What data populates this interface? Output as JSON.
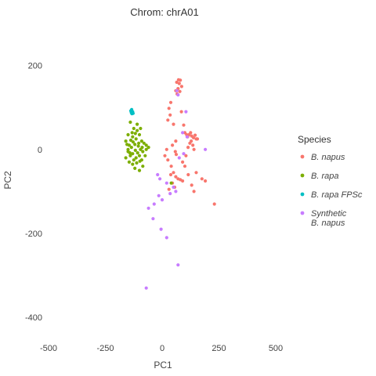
{
  "chart_data": {
    "type": "scatter",
    "title": "Chrom: chrA01",
    "xlabel": "PC1",
    "ylabel": "PC2",
    "xlim": [
      -500,
      500
    ],
    "ylim": [
      -450,
      300
    ],
    "xticks": [
      "-500",
      "-250",
      "0",
      "250",
      "500"
    ],
    "yticks": [
      "200",
      "0",
      "-200",
      "-400"
    ],
    "xtick_values": [
      -500,
      -250,
      0,
      250,
      500
    ],
    "ytick_values": [
      200,
      0,
      -200,
      -400
    ],
    "grid": false,
    "legend": {
      "title": "Species",
      "placement": "right"
    },
    "series": [
      {
        "name": "B. napus",
        "color": "#F8766D",
        "points": [
          [
            72,
            166
          ],
          [
            80,
            165
          ],
          [
            64,
            160
          ],
          [
            75,
            157
          ],
          [
            86,
            150
          ],
          [
            70,
            145
          ],
          [
            60,
            140
          ],
          [
            78,
            138
          ],
          [
            66,
            132
          ],
          [
            38,
            112
          ],
          [
            30,
            98
          ],
          [
            35,
            82
          ],
          [
            25,
            70
          ],
          [
            50,
            60
          ],
          [
            100,
            40
          ],
          [
            108,
            35
          ],
          [
            112,
            30
          ],
          [
            118,
            35
          ],
          [
            125,
            40
          ],
          [
            130,
            32
          ],
          [
            138,
            28
          ],
          [
            145,
            34
          ],
          [
            150,
            25
          ],
          [
            122,
            15
          ],
          [
            128,
            20
          ],
          [
            135,
            10
          ],
          [
            114,
            5
          ],
          [
            155,
            25
          ],
          [
            140,
            0
          ],
          [
            90,
            -30
          ],
          [
            100,
            -40
          ],
          [
            40,
            -40
          ],
          [
            50,
            -55
          ],
          [
            60,
            -65
          ],
          [
            70,
            -70
          ],
          [
            80,
            -72
          ],
          [
            90,
            -75
          ],
          [
            45,
            -80
          ],
          [
            55,
            -90
          ],
          [
            30,
            -95
          ],
          [
            38,
            -60
          ],
          [
            150,
            -55
          ],
          [
            175,
            -70
          ],
          [
            190,
            -75
          ],
          [
            130,
            -85
          ],
          [
            140,
            -100
          ],
          [
            230,
            -130
          ],
          [
            20,
            0
          ],
          [
            12,
            -15
          ],
          [
            25,
            -25
          ],
          [
            60,
            20
          ],
          [
            85,
            90
          ],
          [
            95,
            58
          ],
          [
            62,
            -12
          ],
          [
            105,
            -15
          ],
          [
            115,
            -60
          ],
          [
            58,
            -5
          ],
          [
            45,
            10
          ]
        ]
      },
      {
        "name": "B. rapa",
        "color": "#7CAE00",
        "points": [
          [
            -140,
            65
          ],
          [
            -125,
            50
          ],
          [
            -110,
            60
          ],
          [
            -150,
            35
          ],
          [
            -130,
            30
          ],
          [
            -115,
            25
          ],
          [
            -100,
            35
          ],
          [
            -90,
            20
          ],
          [
            -80,
            15
          ],
          [
            -70,
            10
          ],
          [
            -160,
            20
          ],
          [
            -145,
            10
          ],
          [
            -135,
            5
          ],
          [
            -120,
            12
          ],
          [
            -105,
            8
          ],
          [
            -95,
            0
          ],
          [
            -85,
            -5
          ],
          [
            -150,
            -5
          ],
          [
            -140,
            -15
          ],
          [
            -130,
            -10
          ],
          [
            -115,
            -20
          ],
          [
            -100,
            -15
          ],
          [
            -160,
            -20
          ],
          [
            -145,
            -30
          ],
          [
            -130,
            -35
          ],
          [
            -120,
            -45
          ],
          [
            -100,
            -50
          ],
          [
            -85,
            -40
          ],
          [
            -150,
            0
          ],
          [
            -138,
            22
          ],
          [
            -128,
            18
          ],
          [
            -118,
            -2
          ],
          [
            -108,
            -8
          ],
          [
            -90,
            -25
          ],
          [
            -75,
            -15
          ],
          [
            -110,
            45
          ],
          [
            -95,
            50
          ],
          [
            -70,
            0
          ],
          [
            -60,
            5
          ],
          [
            -155,
            12
          ],
          [
            -142,
            -8
          ],
          [
            -125,
            -25
          ],
          [
            -112,
            -32
          ],
          [
            -98,
            -28
          ],
          [
            -132,
            40
          ],
          [
            -118,
            38
          ],
          [
            -103,
            15
          ],
          [
            -88,
            5
          ],
          [
            40,
            -80
          ]
        ]
      },
      {
        "name": "B. rapa FPSc",
        "color": "#00BFC4",
        "points": [
          [
            -138,
            92
          ],
          [
            -134,
            95
          ],
          [
            -136,
            88
          ],
          [
            -130,
            90
          ],
          [
            -133,
            85
          ],
          [
            -128,
            86
          ]
        ]
      },
      {
        "name": "Synthetic B. napus",
        "color": "#C77CFF",
        "points": [
          [
            65,
            140
          ],
          [
            70,
            130
          ],
          [
            90,
            40
          ],
          [
            110,
            30
          ],
          [
            190,
            0
          ],
          [
            95,
            -10
          ],
          [
            75,
            -20
          ],
          [
            -20,
            -60
          ],
          [
            -10,
            -70
          ],
          [
            20,
            -80
          ],
          [
            -15,
            -110
          ],
          [
            0,
            -120
          ],
          [
            -35,
            -130
          ],
          [
            -60,
            -140
          ],
          [
            -5,
            -190
          ],
          [
            -40,
            -165
          ],
          [
            20,
            -210
          ],
          [
            70,
            -275
          ],
          [
            -70,
            -330
          ],
          [
            50,
            -90
          ],
          [
            60,
            -100
          ],
          [
            35,
            -105
          ],
          [
            105,
            90
          ]
        ]
      }
    ]
  }
}
